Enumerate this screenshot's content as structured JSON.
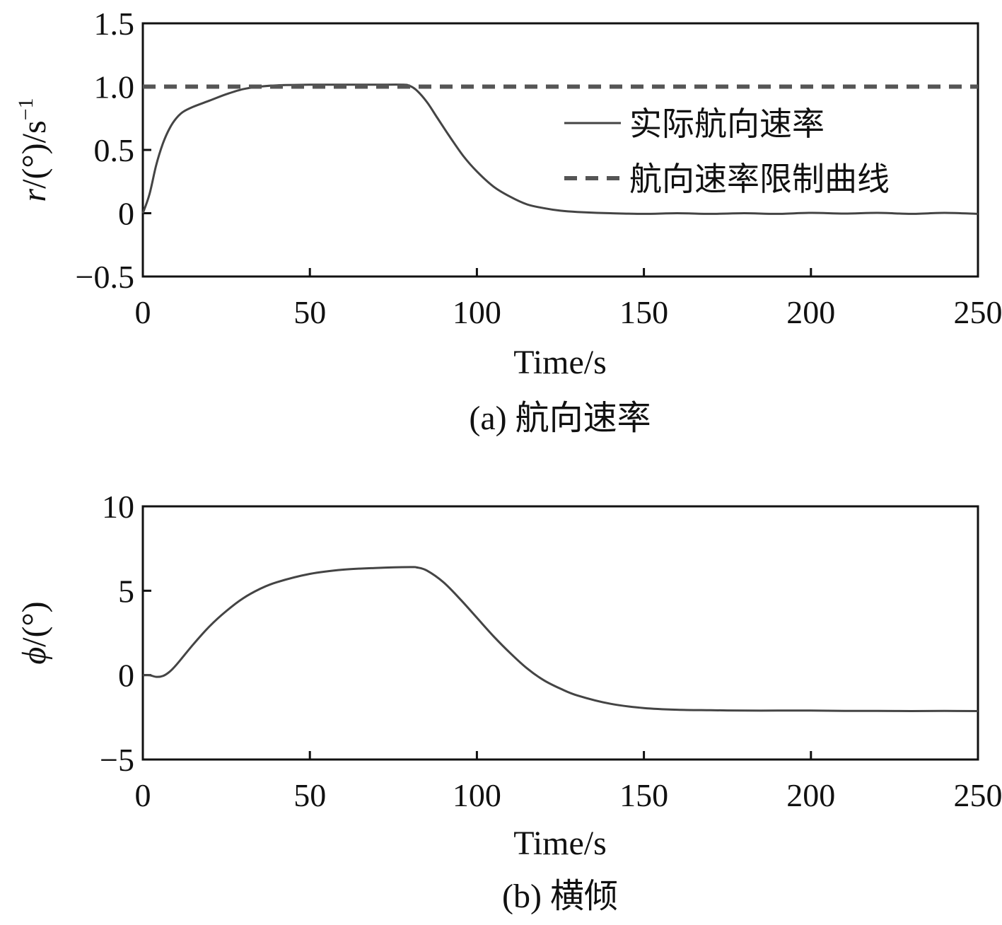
{
  "chart_data": [
    {
      "type": "line",
      "caption": "(a) 航向速率",
      "xlabel": "Time/s",
      "ylabel_italic": "r",
      "ylabel_rest": "/(°)/s",
      "ylabel_sup": "−1",
      "xlim": [
        0,
        250
      ],
      "ylim": [
        -0.5,
        1.5
      ],
      "xticks": [
        0,
        50,
        100,
        150,
        200,
        250
      ],
      "xtick_labels": [
        "0",
        "50",
        "100",
        "150",
        "200",
        "250"
      ],
      "yticks": [
        -0.5,
        0,
        0.5,
        1.0,
        1.5
      ],
      "ytick_labels": [
        "−0.5",
        "0",
        "0.5",
        "1.0",
        "1.5"
      ],
      "legend_position": "right",
      "series": [
        {
          "name": "实际航向速率",
          "style": "solid",
          "color": "#444444",
          "x": [
            0,
            2,
            4,
            6,
            8,
            10,
            12,
            15,
            20,
            25,
            30,
            35,
            40,
            50,
            60,
            70,
            78,
            80,
            82,
            85,
            88,
            92,
            96,
            100,
            105,
            110,
            115,
            120,
            125,
            130,
            140,
            150,
            160,
            170,
            180,
            190,
            200,
            210,
            220,
            230,
            240,
            250
          ],
          "y": [
            0,
            0.15,
            0.38,
            0.55,
            0.67,
            0.75,
            0.8,
            0.84,
            0.89,
            0.94,
            0.98,
            1.0,
            1.01,
            1.015,
            1.015,
            1.015,
            1.015,
            1.005,
            0.97,
            0.88,
            0.76,
            0.6,
            0.45,
            0.33,
            0.21,
            0.13,
            0.07,
            0.04,
            0.02,
            0.01,
            0.0,
            -0.005,
            0.0,
            -0.005,
            0.0,
            -0.005,
            0.003,
            -0.003,
            0.003,
            -0.005,
            0.003,
            -0.005
          ]
        },
        {
          "name": "航向速率限制曲线",
          "style": "dashed",
          "color": "#555555",
          "x": [
            0,
            250
          ],
          "y": [
            1.0,
            1.0
          ]
        }
      ]
    },
    {
      "type": "line",
      "caption": "(b) 横倾",
      "xlabel": "Time/s",
      "ylabel_italic": "ϕ",
      "ylabel_rest": "/(°)",
      "xlim": [
        0,
        250
      ],
      "ylim": [
        -5,
        10
      ],
      "xticks": [
        0,
        50,
        100,
        150,
        200,
        250
      ],
      "xtick_labels": [
        "0",
        "50",
        "100",
        "150",
        "200",
        "250"
      ],
      "yticks": [
        -5,
        0,
        5,
        10
      ],
      "ytick_labels": [
        "−5",
        "0",
        "5",
        "10"
      ],
      "series": [
        {
          "name": "横倾",
          "style": "solid",
          "color": "#444444",
          "x": [
            0,
            2,
            4,
            6,
            8,
            10,
            15,
            20,
            25,
            30,
            35,
            40,
            50,
            60,
            70,
            80,
            82,
            85,
            90,
            95,
            100,
            105,
            110,
            115,
            120,
            125,
            130,
            140,
            150,
            160,
            170,
            180,
            190,
            200,
            210,
            220,
            230,
            240,
            250
          ],
          "y": [
            0,
            0.0,
            -0.1,
            -0.05,
            0.2,
            0.6,
            1.8,
            2.9,
            3.8,
            4.55,
            5.1,
            5.5,
            6.0,
            6.25,
            6.35,
            6.4,
            6.38,
            6.2,
            5.5,
            4.5,
            3.4,
            2.3,
            1.3,
            0.4,
            -0.3,
            -0.8,
            -1.2,
            -1.7,
            -1.95,
            -2.05,
            -2.08,
            -2.1,
            -2.1,
            -2.1,
            -2.12,
            -2.12,
            -2.13,
            -2.12,
            -2.13
          ]
        }
      ]
    }
  ]
}
